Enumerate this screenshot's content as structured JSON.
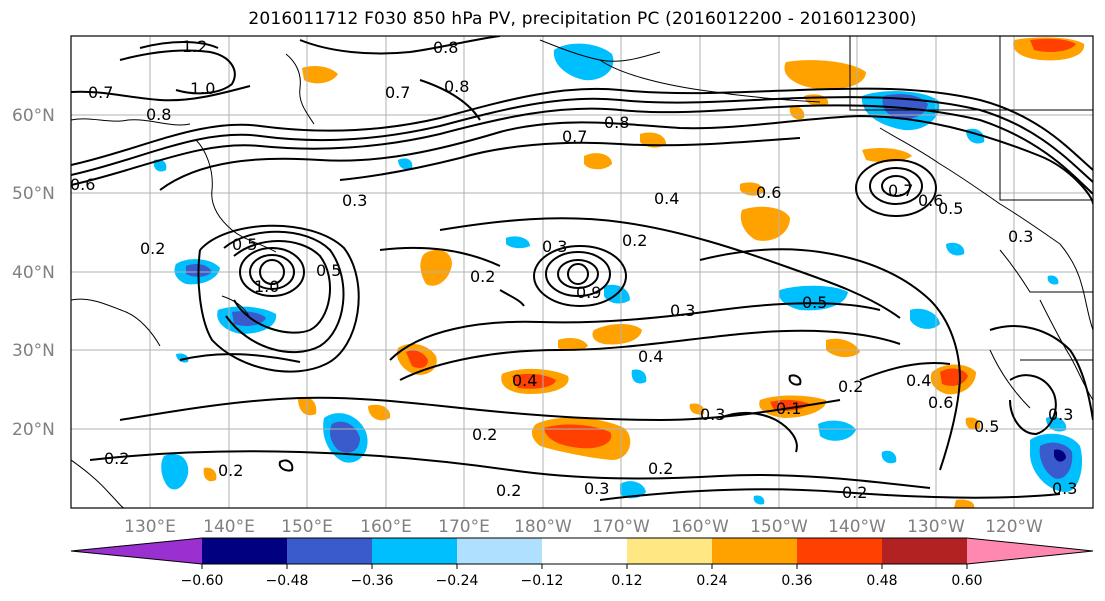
{
  "title": "2016011712 F030 850 hPa PV, precipitation PC (2016012200 - 2016012300)",
  "lat_labels": [
    "60°N",
    "50°N",
    "40°N",
    "30°N",
    "20°N"
  ],
  "lon_labels": [
    "130°E",
    "140°E",
    "150°E",
    "160°E",
    "170°E",
    "180°W",
    "170°W",
    "160°W",
    "150°W",
    "140°W",
    "130°W",
    "120°W"
  ],
  "colorbar": {
    "ticks": [
      "−0.60",
      "−0.48",
      "−0.36",
      "−0.24",
      "−0.12",
      "0.12",
      "0.24",
      "0.36",
      "0.48",
      "0.60"
    ],
    "colors": [
      "#9b30d0",
      "#000080",
      "#3a5bcc",
      "#00bfff",
      "#b0e0ff",
      "#ffffff",
      "#ffe884",
      "#ffa200",
      "#ff4000",
      "#b22222",
      "#ff88b0"
    ]
  },
  "contour_labels": [
    "1.2",
    "1.0",
    "0.8",
    "0.7",
    "0.8",
    "0.8",
    "0.6",
    "0.7",
    "0.8",
    "0.7",
    "0.3",
    "0.5",
    "1.0",
    "0.5",
    "0.2",
    "0.3",
    "0.2",
    "0.9",
    "0.3",
    "0.5",
    "0.4",
    "0.4",
    "0.2",
    "0.3",
    "0.1",
    "0.2",
    "0.2",
    "0.3",
    "0.2",
    "0.4",
    "0.6",
    "0.7",
    "0.6",
    "0.5",
    "0.3",
    "0.4",
    "0.6",
    "0.5",
    "0.2",
    "0.3",
    "0.2",
    "0.3",
    "0.2",
    "0.2"
  ],
  "colors": {
    "frame": "#000000",
    "grid": "#b0b0b0",
    "coast": "#000000"
  }
}
